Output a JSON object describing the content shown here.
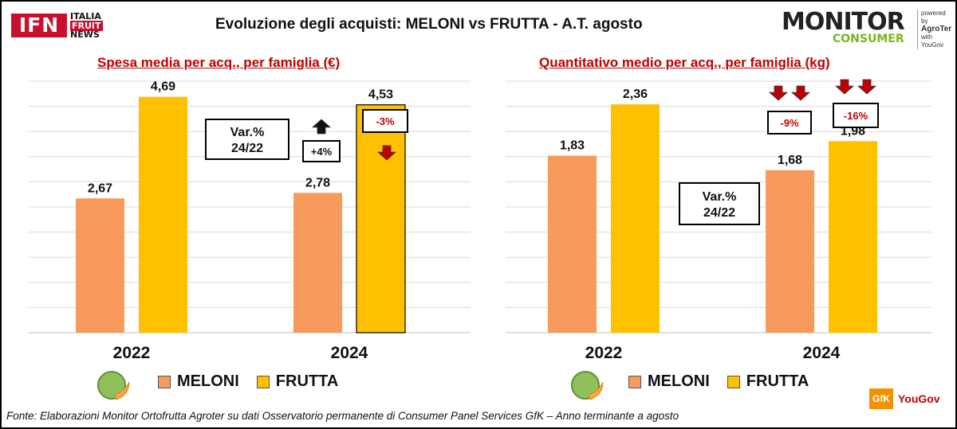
{
  "header": {
    "title": "Evoluzione degli acquisti: MELONI vs FRUTTA  - A.T. agosto",
    "ifn_logo": {
      "main": "IFN",
      "line1": "ITALIA",
      "line2": "FRUIT",
      "line3": "NEWS"
    },
    "monitor_logo": {
      "word": "MONITOR",
      "sub": "CONSUMER",
      "powered1": "powered by",
      "powered2": "AgroTer",
      "powered3": "with",
      "powered4": "YouGov"
    }
  },
  "colors": {
    "meloni": "#f79a5b",
    "frutta": "#ffc000",
    "accent_red": "#c00000",
    "grid": "#d9d9d9"
  },
  "chart_data": [
    {
      "type": "bar",
      "title": "Spesa media per acq., per famiglia (€)",
      "categories": [
        "2022",
        "2024"
      ],
      "series": [
        {
          "name": "MELONI",
          "values": [
            2.67,
            2.78
          ]
        },
        {
          "name": "FRUTTA",
          "values": [
            4.69,
            4.53
          ]
        }
      ],
      "ylim": [
        0,
        5
      ],
      "grid": true,
      "var_box": "Var.% 24/22",
      "annotations": [
        {
          "series": "MELONI",
          "category": "2024",
          "text": "+4%",
          "direction": "up"
        },
        {
          "series": "FRUTTA",
          "category": "2024",
          "text": "-3%",
          "direction": "down"
        }
      ]
    },
    {
      "type": "bar",
      "title": "Quantitativo medio per acq., per famiglia (kg)",
      "categories": [
        "2022",
        "2024"
      ],
      "series": [
        {
          "name": "MELONI",
          "values": [
            1.83,
            1.68
          ]
        },
        {
          "name": "FRUTTA",
          "values": [
            2.36,
            1.98
          ]
        }
      ],
      "ylim": [
        0,
        2.6
      ],
      "grid": true,
      "var_box": "Var.% 24/22",
      "annotations": [
        {
          "series": "MELONI",
          "category": "2024",
          "text": "-9%",
          "direction": "down"
        },
        {
          "series": "FRUTTA",
          "category": "2024",
          "text": "-16%",
          "direction": "down"
        }
      ]
    }
  ],
  "legend": [
    {
      "label": "MELONI",
      "icon": "melon-icon"
    },
    {
      "label": "FRUTTA"
    }
  ],
  "footer": "Fonte: Elaborazioni Monitor Ortofrutta Agroter su dati Osservatorio permanente di Consumer Panel Services GfK  – Anno terminante a agosto",
  "brand_footer": {
    "gfk": "GfK",
    "yougov": "YouGov"
  }
}
